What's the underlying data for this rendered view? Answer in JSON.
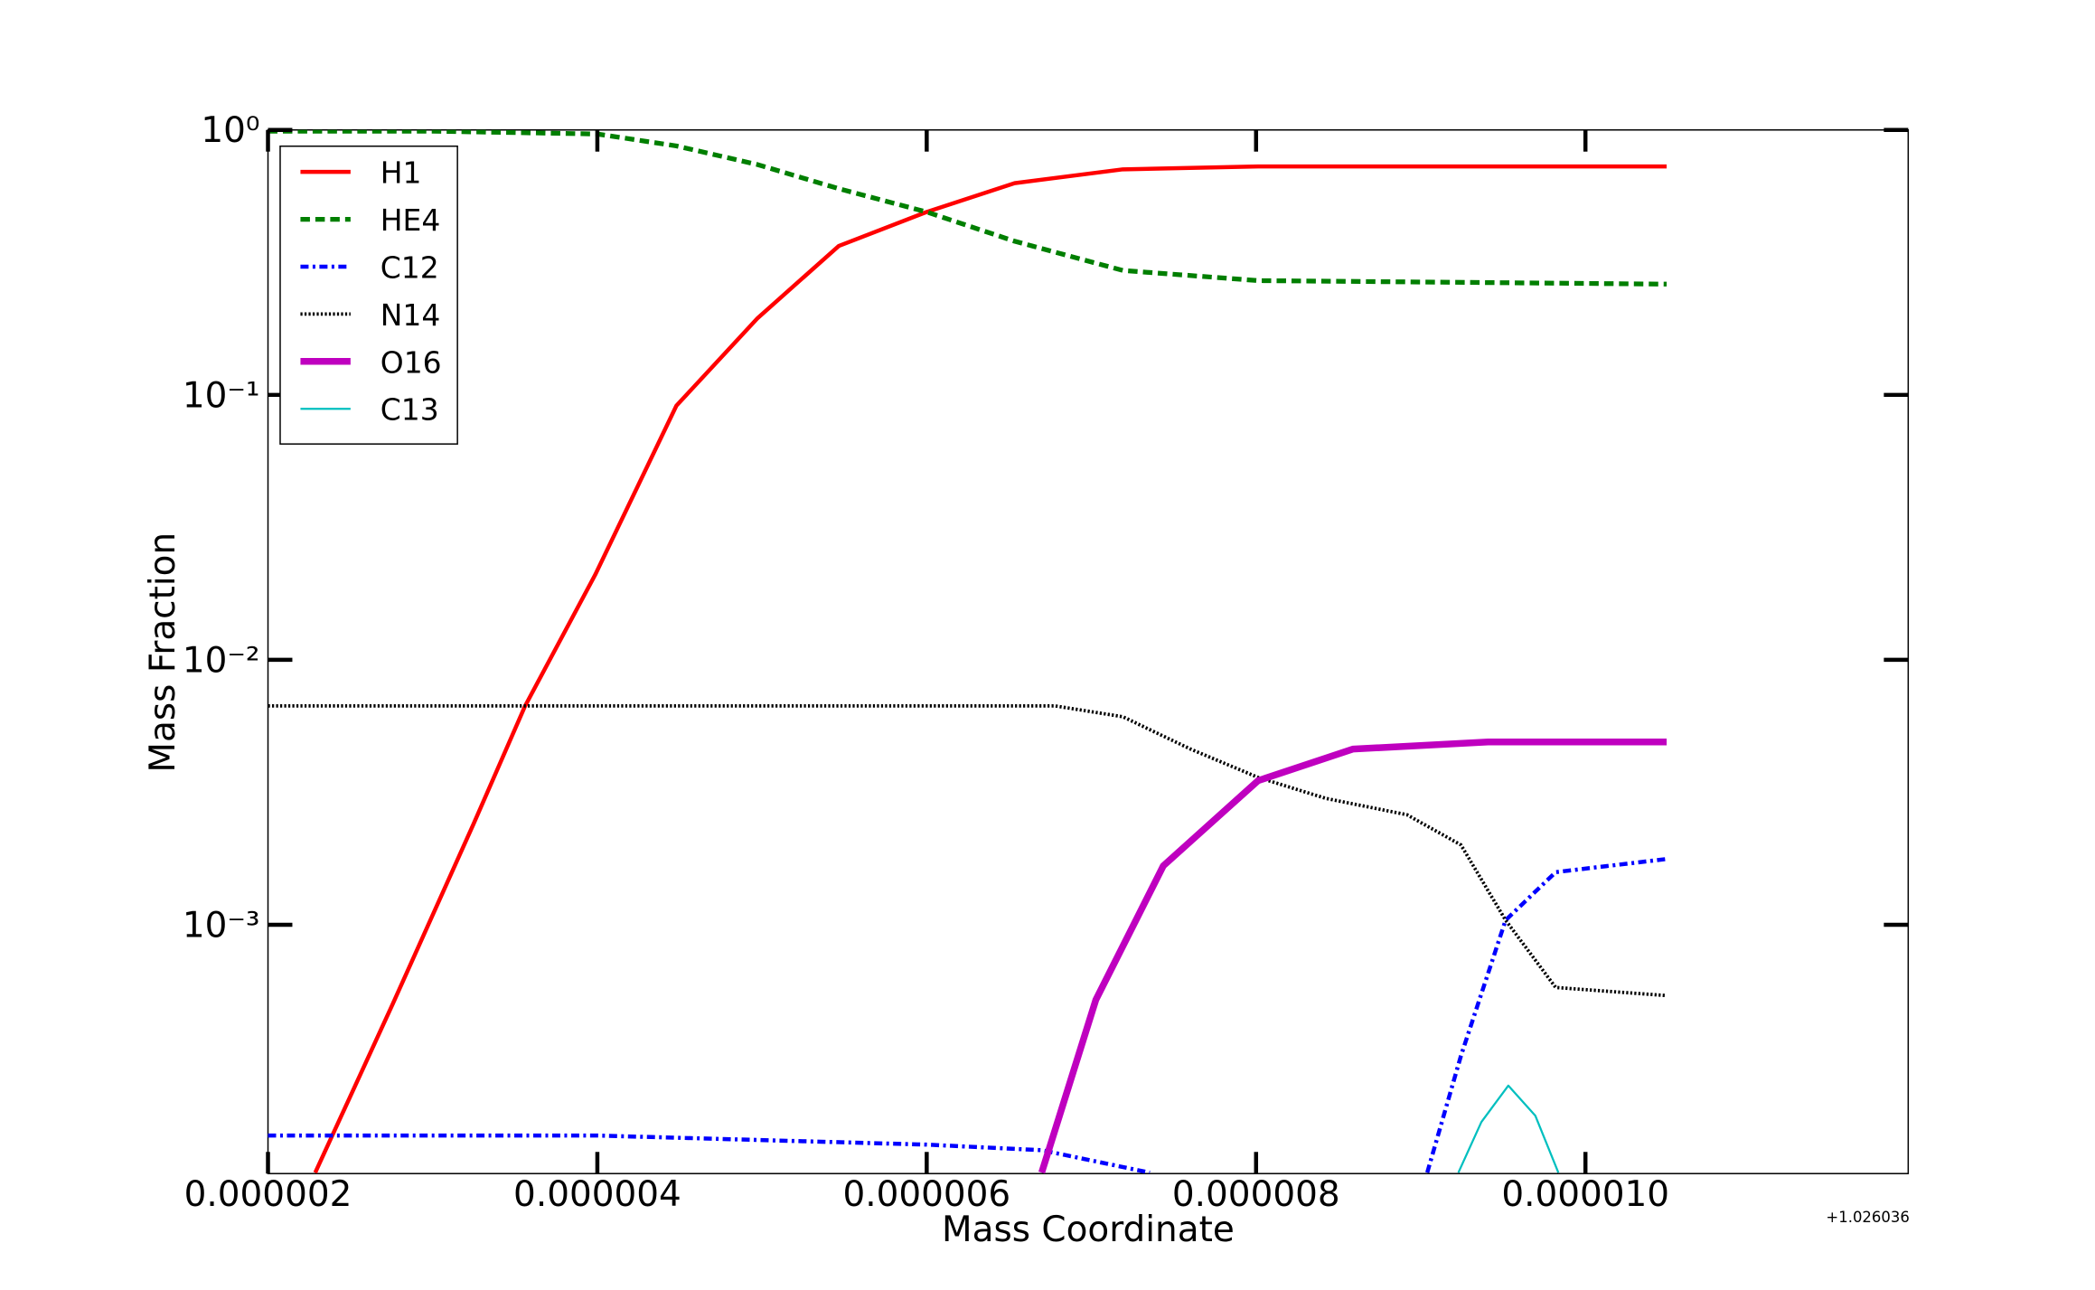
{
  "chart_data": {
    "type": "line",
    "x_label": "Mass Coordinate",
    "y_label": "Mass Fraction",
    "x_offset": "+1.026036",
    "log_y": true,
    "xlim": [
      2e-06,
      1.196e-05
    ],
    "ylim": [
      0.000115,
      1
    ],
    "xticks": [
      {
        "value": 2e-06,
        "label": "0.000002"
      },
      {
        "value": 4e-06,
        "label": "0.000004"
      },
      {
        "value": 6e-06,
        "label": "0.000006"
      },
      {
        "value": 8e-06,
        "label": "0.000008"
      },
      {
        "value": 1e-05,
        "label": "0.000010"
      }
    ],
    "yticks": [
      {
        "value": 1,
        "label": "10⁰"
      },
      {
        "value": 0.1,
        "label": "10⁻¹"
      },
      {
        "value": 0.01,
        "label": "10⁻²"
      },
      {
        "value": 0.001,
        "label": "10⁻³"
      }
    ],
    "legend": "upper left",
    "series": [
      {
        "name": "H1",
        "color": "#ff0000",
        "linestyle": "solid",
        "x": [
          2.287e-06,
          2.756e-06,
          3.248e-06,
          3.561e-06,
          3.988e-06,
          4.48e-06,
          4.973e-06,
          5.466e-06,
          6e-06,
          6.534e-06,
          7.191e-06,
          8.012e-06,
          1.0493e-05
        ],
        "values": [
          0.000116,
          0.0005,
          0.0024,
          0.0067,
          0.021,
          0.091,
          0.195,
          0.365,
          0.49,
          0.63,
          0.71,
          0.728,
          0.728
        ]
      },
      {
        "name": "HE4",
        "color": "#007f00",
        "linestyle": "dashed",
        "x": [
          2e-06,
          3e-06,
          4e-06,
          4.48e-06,
          4.973e-06,
          5.466e-06,
          6e-06,
          6.534e-06,
          7.191e-06,
          8.012e-06,
          1.0493e-05
        ],
        "values": [
          0.99,
          0.99,
          0.965,
          0.87,
          0.74,
          0.6,
          0.49,
          0.38,
          0.295,
          0.27,
          0.262
        ]
      },
      {
        "name": "C12",
        "color": "#0000ff",
        "linestyle": "dashdot",
        "x": [
          2e-06,
          4e-06,
          6e-06,
          6.698e-06,
          7.355e-06,
          8e-06,
          9.039e-06,
          9.244e-06,
          9.515e-06,
          9.819e-06,
          1.0493e-05
        ],
        "values": [
          0.00016,
          0.00016,
          0.000148,
          0.000141,
          0.000116,
          null,
          0.000116,
          0.00032,
          0.00104,
          0.00158,
          0.00177
        ]
      },
      {
        "name": "N14",
        "color": "#000000",
        "linestyle": "dotted",
        "x": [
          2e-06,
          6e-06,
          6.78e-06,
          7.191e-06,
          7.602e-06,
          8.012e-06,
          8.423e-06,
          8.916e-06,
          9.244e-06,
          9.515e-06,
          9.819e-06,
          1.0493e-05
        ],
        "values": [
          0.0067,
          0.0067,
          0.0067,
          0.0061,
          0.0046,
          0.0036,
          0.003,
          0.0026,
          0.002,
          0.00104,
          0.00058,
          0.00054
        ]
      },
      {
        "name": "O16",
        "color": "#bf00bf",
        "linestyle": "thick",
        "x": [
          6.698e-06,
          7.027e-06,
          7.437e-06,
          8.012e-06,
          8.587e-06,
          9.409e-06,
          1.0493e-05
        ],
        "values": [
          0.000116,
          0.00052,
          0.00167,
          0.0035,
          0.0046,
          0.0049,
          0.0049
        ]
      },
      {
        "name": "C13",
        "color": "#00bfbf",
        "linestyle": "thin",
        "x": [
          9.228e-06,
          9.368e-06,
          9.532e-06,
          9.696e-06,
          9.836e-06
        ],
        "values": [
          0.000116,
          0.00018,
          0.000247,
          0.00019,
          0.000116
        ]
      }
    ]
  }
}
